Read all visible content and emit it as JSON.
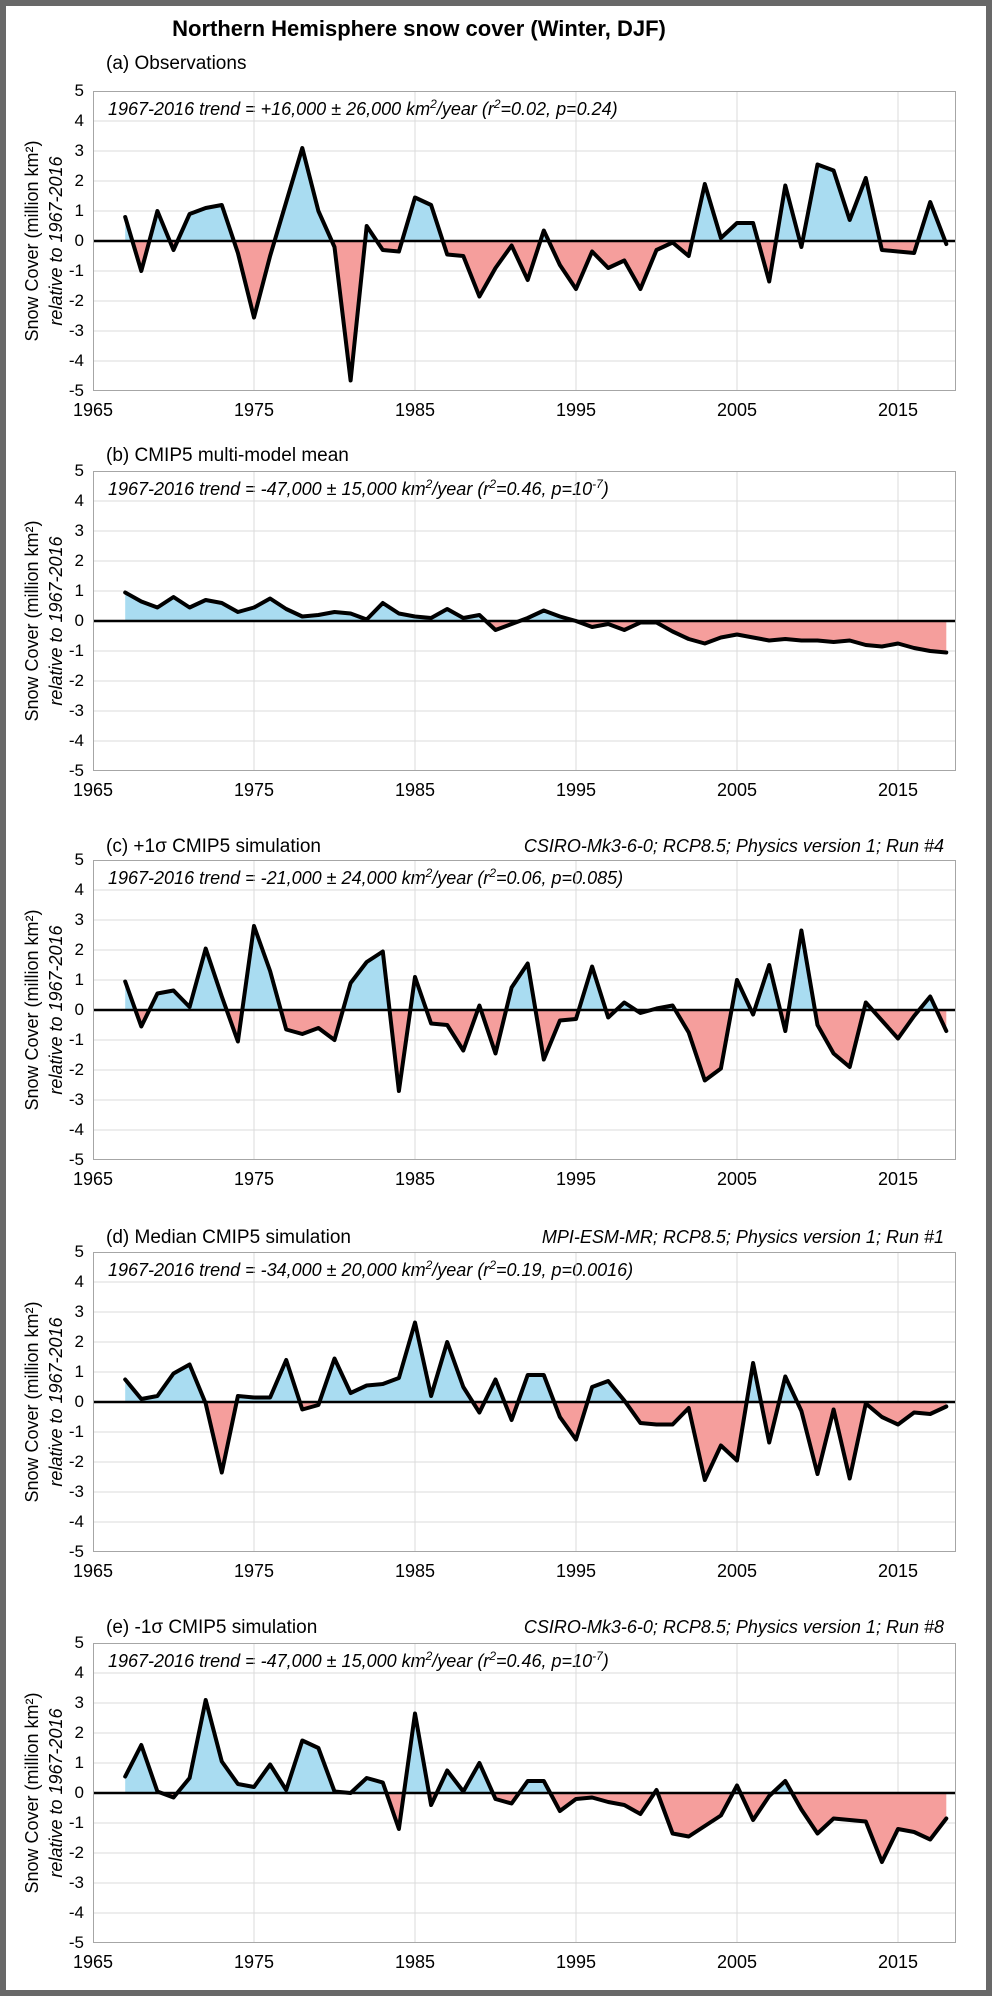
{
  "title": "Northern Hemisphere snow cover (Winter, DJF)",
  "y_axis": {
    "label_line1": "Snow Cover (million km²)",
    "label_line2": "relative to 1967-2016",
    "ticks": [
      5,
      4,
      3,
      2,
      1,
      0,
      -1,
      -2,
      -3,
      -4,
      -5
    ]
  },
  "x_axis": {
    "ticks": [
      1965,
      1975,
      1985,
      1995,
      2005,
      2015
    ]
  },
  "colors": {
    "positive_fill": "#A9DCF1",
    "negative_fill": "#F59E9C",
    "line": "#000000",
    "zero_line": "#000000",
    "grid": "#DBDBDB",
    "frame": "#A6A6A6",
    "outer_border": "#686868"
  },
  "chart_data": [
    {
      "type": "area",
      "panel_label": "(a) Observations",
      "model_info": "",
      "trend_text": "1967-2016 trend = +16,000 ± 26,000 km^2^/year (r^2^=0.02, p=0.24)",
      "x_start": 1967,
      "x_end": 2018,
      "xlim": [
        1965,
        2018.6
      ],
      "ylim": [
        -5,
        5
      ],
      "xlabel": "",
      "ylabel": "Snow Cover (million km²) relative to 1967-2016",
      "values": [
        0.8,
        -1.0,
        1.0,
        -0.3,
        0.9,
        1.1,
        1.2,
        -0.4,
        -2.55,
        -0.5,
        1.3,
        3.1,
        1.0,
        -0.2,
        -4.65,
        0.5,
        -0.3,
        -0.35,
        1.45,
        1.2,
        -0.45,
        -0.5,
        -1.85,
        -0.9,
        -0.15,
        -1.3,
        0.35,
        -0.8,
        -1.6,
        -0.35,
        -0.9,
        -0.65,
        -1.6,
        -0.3,
        -0.05,
        -0.5,
        1.9,
        0.1,
        0.6,
        0.6,
        -1.35,
        1.85,
        -0.2,
        2.55,
        2.35,
        0.7,
        2.1,
        -0.3,
        -0.35,
        -0.4,
        1.3,
        -0.1
      ]
    },
    {
      "type": "area",
      "panel_label": "(b) CMIP5 multi-model mean",
      "model_info": "",
      "trend_text": "1967-2016 trend = -47,000 ± 15,000 km^2^/year (r^2^=0.46, p=10^-7^)",
      "x_start": 1967,
      "x_end": 2018,
      "xlim": [
        1965,
        2018.6
      ],
      "ylim": [
        -5,
        5
      ],
      "xlabel": "",
      "ylabel": "Snow Cover (million km²) relative to 1967-2016",
      "values": [
        0.95,
        0.65,
        0.45,
        0.8,
        0.45,
        0.7,
        0.6,
        0.3,
        0.45,
        0.75,
        0.4,
        0.15,
        0.2,
        0.3,
        0.25,
        0.05,
        0.6,
        0.25,
        0.15,
        0.1,
        0.4,
        0.1,
        0.2,
        -0.3,
        -0.1,
        0.1,
        0.35,
        0.15,
        0.0,
        -0.2,
        -0.1,
        -0.3,
        -0.05,
        -0.05,
        -0.35,
        -0.6,
        -0.75,
        -0.55,
        -0.45,
        -0.55,
        -0.65,
        -0.6,
        -0.65,
        -0.65,
        -0.7,
        -0.65,
        -0.8,
        -0.85,
        -0.75,
        -0.9,
        -1.0,
        -1.05
      ]
    },
    {
      "type": "area",
      "panel_label": "(c) +1σ CMIP5 simulation",
      "model_info": "CSIRO-Mk3-6-0; RCP8.5; Physics version 1; Run #4",
      "trend_text": "1967-2016 trend = -21,000 ± 24,000 km^2^/year (r^2^=0.06, p=0.085)",
      "x_start": 1967,
      "x_end": 2018,
      "xlim": [
        1965,
        2018.6
      ],
      "ylim": [
        -5,
        5
      ],
      "xlabel": "",
      "ylabel": "Snow Cover (million km²) relative to 1967-2016",
      "values": [
        0.95,
        -0.55,
        0.55,
        0.65,
        0.1,
        2.05,
        0.45,
        -1.05,
        2.8,
        1.3,
        -0.65,
        -0.8,
        -0.6,
        -1.0,
        0.9,
        1.6,
        1.95,
        -2.7,
        1.1,
        -0.45,
        -0.5,
        -1.35,
        0.15,
        -1.45,
        0.75,
        1.55,
        -1.65,
        -0.35,
        -0.3,
        1.45,
        -0.25,
        0.25,
        -0.1,
        0.05,
        0.15,
        -0.75,
        -2.35,
        -1.95,
        1.0,
        -0.15,
        1.5,
        -0.7,
        2.65,
        -0.5,
        -1.45,
        -1.9,
        0.25,
        -0.35,
        -0.95,
        -0.2,
        0.45,
        -0.7
      ]
    },
    {
      "type": "area",
      "panel_label": "(d) Median CMIP5 simulation",
      "model_info": "MPI-ESM-MR; RCP8.5; Physics version 1; Run #1",
      "trend_text": "1967-2016 trend = -34,000 ± 20,000 km^2^/year (r^2^=0.19, p=0.0016)",
      "x_start": 1967,
      "x_end": 2018,
      "xlim": [
        1965,
        2018.6
      ],
      "ylim": [
        -5,
        5
      ],
      "xlabel": "",
      "ylabel": "Snow Cover (million km²) relative to 1967-2016",
      "values": [
        0.75,
        0.1,
        0.2,
        0.95,
        1.25,
        -0.05,
        -2.35,
        0.2,
        0.15,
        0.15,
        1.4,
        -0.25,
        -0.1,
        1.45,
        0.3,
        0.55,
        0.6,
        0.8,
        2.65,
        0.2,
        2.0,
        0.5,
        -0.35,
        0.75,
        -0.6,
        0.9,
        0.9,
        -0.5,
        -1.25,
        0.5,
        0.7,
        0.05,
        -0.7,
        -0.75,
        -0.75,
        -0.2,
        -2.6,
        -1.45,
        -1.95,
        1.3,
        -1.35,
        0.85,
        -0.3,
        -2.4,
        -0.25,
        -2.55,
        -0.05,
        -0.5,
        -0.75,
        -0.35,
        -0.4,
        -0.15
      ]
    },
    {
      "type": "area",
      "panel_label": "(e) -1σ CMIP5 simulation",
      "model_info": "CSIRO-Mk3-6-0; RCP8.5; Physics version 1; Run #8",
      "trend_text": "1967-2016 trend = -47,000 ± 15,000 km^2^/year (r^2^=0.46, p=10^-7^)",
      "x_start": 1967,
      "x_end": 2018,
      "xlim": [
        1965,
        2018.6
      ],
      "ylim": [
        -5,
        5
      ],
      "xlabel": "",
      "ylabel": "Snow Cover (million km²) relative to 1967-2016",
      "values": [
        0.55,
        1.6,
        0.05,
        -0.15,
        0.5,
        3.1,
        1.05,
        0.3,
        0.2,
        0.95,
        0.1,
        1.75,
        1.5,
        0.05,
        0.0,
        0.5,
        0.35,
        -1.2,
        2.65,
        -0.4,
        0.75,
        0.05,
        1.0,
        -0.2,
        -0.35,
        0.4,
        0.4,
        -0.6,
        -0.2,
        -0.15,
        -0.3,
        -0.4,
        -0.7,
        0.1,
        -1.35,
        -1.45,
        -1.1,
        -0.75,
        0.25,
        -0.9,
        -0.1,
        0.4,
        -0.55,
        -1.35,
        -0.85,
        -0.9,
        -0.95,
        -2.3,
        -1.2,
        -1.3,
        -1.55,
        -0.85
      ]
    }
  ]
}
